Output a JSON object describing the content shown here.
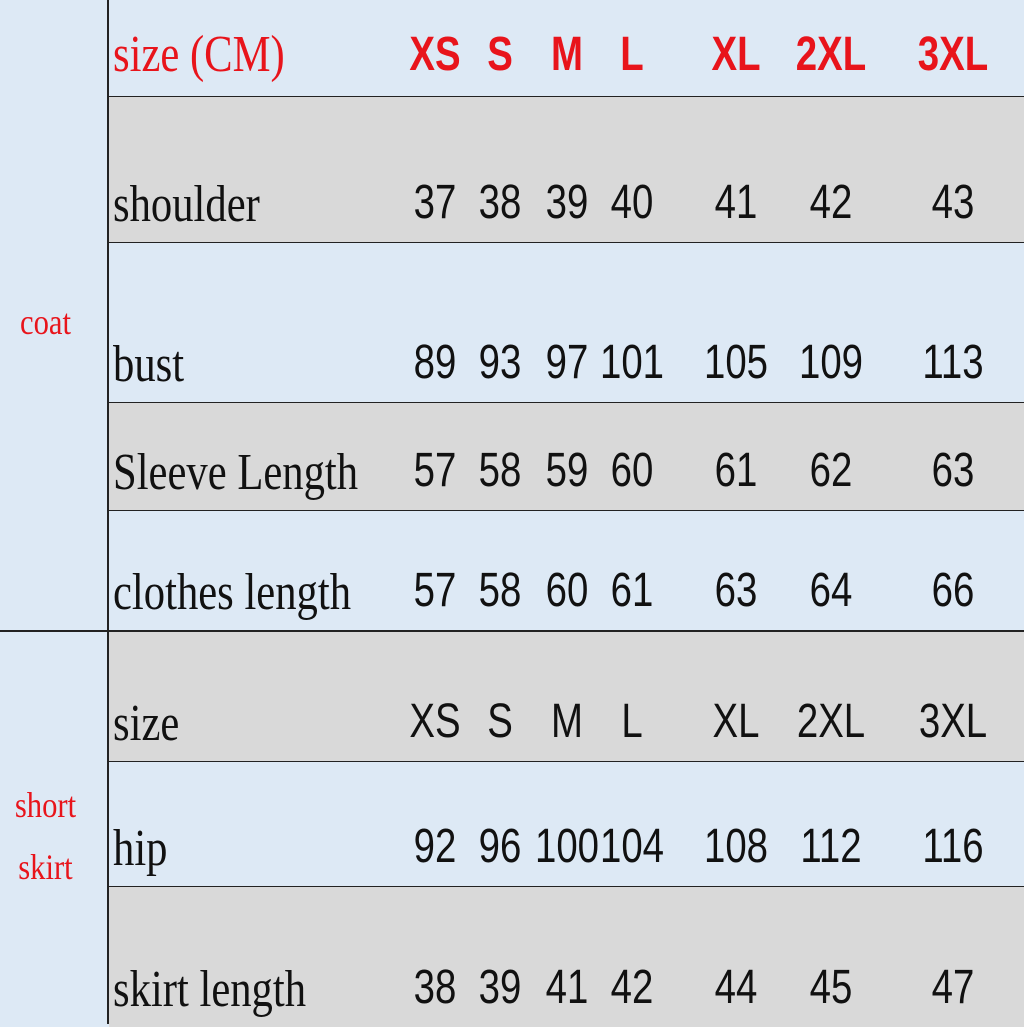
{
  "colors": {
    "accent": "#e8141b",
    "row_blue": "#dde9f5",
    "row_gray": "#d9d9d9"
  },
  "groups": {
    "coat": "coat",
    "skirt_line1": "short",
    "skirt_line2": "skirt"
  },
  "coat_header": {
    "label": "size (CM)",
    "sizes": [
      "XS",
      "S",
      "M",
      "L",
      "XL",
      "2XL",
      "3XL"
    ]
  },
  "coat_rows": [
    {
      "label": "shoulder",
      "values": [
        "37",
        "38",
        "39",
        "40",
        "41",
        "42",
        "43"
      ]
    },
    {
      "label": "bust",
      "values": [
        "89",
        "93",
        "97",
        "101",
        "105",
        "109",
        "113"
      ]
    },
    {
      "label": "Sleeve Length",
      "values": [
        "57",
        "58",
        "59",
        "60",
        "61",
        "62",
        "63"
      ]
    },
    {
      "label": "clothes length",
      "values": [
        "57",
        "58",
        "60",
        "61",
        "63",
        "64",
        "66"
      ]
    }
  ],
  "skirt_header": {
    "label": "size",
    "sizes": [
      "XS",
      "S",
      "M",
      "L",
      "XL",
      "2XL",
      "3XL"
    ]
  },
  "skirt_rows": [
    {
      "label": "hip",
      "values": [
        "92",
        "96",
        "100",
        "104",
        "108",
        "112",
        "116"
      ]
    },
    {
      "label": "skirt length",
      "values": [
        "38",
        "39",
        "41",
        "42",
        "44",
        "45",
        "47"
      ]
    }
  ]
}
